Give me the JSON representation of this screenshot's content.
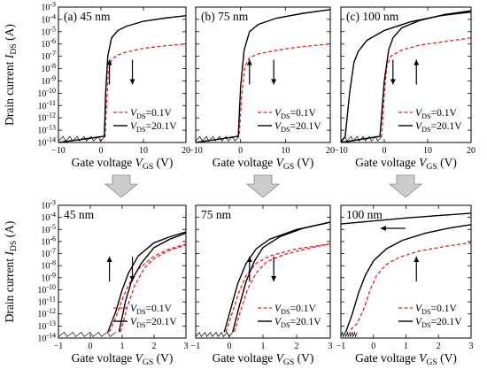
{
  "figure": {
    "ylabel": "Drain current I_DS (A)",
    "xlabel": "Gate voltage V_GS (V)",
    "legend_dashed": "V_DS=0.1V",
    "legend_solid": "V_DS=20.1V",
    "colors": {
      "dashed": "#ee1c24",
      "solid": "#000000",
      "arrow_fill": "#cccccc"
    }
  },
  "chart_data": [
    {
      "type": "line",
      "label": "(a) 45 nm",
      "xlim": [
        -10,
        20
      ],
      "ylim_log10": [
        -14,
        -3
      ],
      "xticks": [
        -10,
        0,
        10,
        20
      ],
      "ytick_labels": [
        "10^-3",
        "10^-4",
        "10^-5",
        "10^-6",
        "10^-7",
        "10^-8",
        "10^-9",
        "10^-10",
        "10^-11",
        "10^-12",
        "10^-13",
        "10^-14"
      ],
      "hysteresis_arrows": [
        "up",
        "down"
      ],
      "series": [
        {
          "name": "V_DS=0.1V",
          "style": "dashed",
          "x": [
            -10,
            1.0,
            1.3,
            1.8,
            2.6,
            4,
            6,
            10,
            15,
            20
          ],
          "log10_y": [
            -14,
            -13.5,
            -11,
            -8,
            -7.2,
            -6.9,
            -6.65,
            -6.35,
            -6.15,
            -6.0
          ]
        },
        {
          "name": "V_DS=20.1V",
          "style": "solid",
          "x": [
            -10,
            0.8,
            1.1,
            1.6,
            2.5,
            4,
            6,
            10,
            15,
            20
          ],
          "log10_y": [
            -14,
            -13.5,
            -10,
            -7,
            -5.5,
            -4.9,
            -4.55,
            -4.15,
            -3.9,
            -3.7
          ]
        }
      ]
    },
    {
      "type": "line",
      "label": "(b) 75 nm",
      "xlim": [
        -10,
        20
      ],
      "ylim_log10": [
        -14,
        -3
      ],
      "xticks": [
        -10,
        0,
        10,
        20
      ],
      "hysteresis_arrows": [
        "up",
        "down"
      ],
      "series": [
        {
          "name": "V_DS=0.1V",
          "style": "dashed",
          "x": [
            -10,
            -0.3,
            0.3,
            1,
            2,
            4,
            8,
            14,
            20
          ],
          "log10_y": [
            -14,
            -13.5,
            -10,
            -7.8,
            -7.1,
            -6.8,
            -6.5,
            -6.2,
            -6.0
          ]
        },
        {
          "name": "V_DS=20.1V",
          "style": "solid",
          "x": [
            -10,
            -0.5,
            0,
            0.8,
            2,
            4,
            8,
            14,
            20
          ],
          "log10_y": [
            -14,
            -13.5,
            -9.5,
            -6.5,
            -5.0,
            -4.4,
            -3.9,
            -3.5,
            -3.2
          ]
        }
      ]
    },
    {
      "type": "line",
      "label": "(c) 100 nm",
      "xlim": [
        -10,
        20
      ],
      "ylim_log10": [
        -14,
        -3
      ],
      "xticks": [
        -10,
        0,
        10,
        20
      ],
      "hysteresis_arrows": [
        "down",
        "up"
      ],
      "series": [
        {
          "name": "V_DS=0.1V",
          "style": "dashed",
          "x": [
            -10,
            -0.6,
            0,
            0.6,
            1.5,
            4,
            8,
            14,
            20
          ],
          "log10_y": [
            -14,
            -13.5,
            -10,
            -7.8,
            -7.0,
            -6.5,
            -6.1,
            -5.8,
            -5.5
          ]
        },
        {
          "name": "V_DS=20.1V",
          "style": "solid",
          "x": [
            -10,
            -1,
            0,
            1,
            2,
            4,
            8,
            14,
            20
          ],
          "log10_y": [
            -14,
            -13.5,
            -9,
            -6.5,
            -5.5,
            -4.7,
            -4.1,
            -3.6,
            -3.3
          ]
        },
        {
          "name": "V_DS=20.1V reverse",
          "style": "solid",
          "x": [
            -10,
            -9,
            -8,
            -7,
            -6,
            -4,
            0,
            6,
            13,
            20
          ],
          "log10_y": [
            -14,
            -13.5,
            -10,
            -7.5,
            -6.6,
            -5.7,
            -4.9,
            -4.2,
            -3.7,
            -3.4
          ]
        }
      ]
    },
    {
      "type": "line",
      "label": "45 nm",
      "xlim": [
        -1,
        3
      ],
      "ylim_log10": [
        -14,
        -3
      ],
      "xticks": [
        -1,
        0,
        1,
        2,
        3
      ],
      "ytick_labels": [
        "10^-3",
        "10^-4",
        "10^-5",
        "10^-6",
        "10^-7",
        "10^-8",
        "10^-9",
        "10^-10",
        "10^-11",
        "10^-12",
        "10^-13",
        "10^-14"
      ],
      "hysteresis_arrows": [
        "up",
        "down"
      ],
      "series": [
        {
          "name": "V_DS=0.1V",
          "style": "dashed",
          "x": [
            0.6,
            0.8,
            1.0,
            1.2,
            1.5,
            2.0,
            2.5,
            3.0
          ],
          "log10_y": [
            -13.5,
            -12.3,
            -10.8,
            -9.6,
            -8.3,
            -7.2,
            -6.6,
            -6.2
          ]
        },
        {
          "name": "V_DS=20.1V",
          "style": "solid",
          "x": [
            0.55,
            0.8,
            1.0,
            1.2,
            1.5,
            2.0,
            2.5,
            3.0
          ],
          "log10_y": [
            -13.5,
            -11.8,
            -10.0,
            -8.6,
            -7.2,
            -6.1,
            -5.6,
            -5.2
          ]
        },
        {
          "name": "V_DS=0.1V reverse",
          "style": "dashed",
          "x": [
            0.95,
            1.15,
            1.4,
            1.7,
            2.0,
            2.5,
            3.0
          ],
          "log10_y": [
            -13.5,
            -11.5,
            -9.6,
            -8.2,
            -7.4,
            -6.7,
            -6.3
          ]
        },
        {
          "name": "V_DS=20.1V reverse",
          "style": "solid",
          "x": [
            0.9,
            1.1,
            1.3,
            1.6,
            2.0,
            2.5,
            3.0
          ],
          "log10_y": [
            -13.5,
            -11.0,
            -9.2,
            -7.8,
            -6.5,
            -5.8,
            -5.3
          ]
        }
      ]
    },
    {
      "type": "line",
      "label": "75 nm",
      "xlim": [
        -1,
        3
      ],
      "ylim_log10": [
        -14,
        -3
      ],
      "xticks": [
        -1,
        0,
        1,
        2,
        3
      ],
      "hysteresis_arrows": [
        "up",
        "down"
      ],
      "series": [
        {
          "name": "V_DS=0.1V",
          "style": "dashed",
          "x": [
            -0.1,
            0.1,
            0.3,
            0.5,
            0.8,
            1.2,
            2.0,
            3.0
          ],
          "log10_y": [
            -13.5,
            -11.8,
            -10.1,
            -8.8,
            -7.8,
            -7.2,
            -6.6,
            -6.2
          ]
        },
        {
          "name": "V_DS=20.1V",
          "style": "solid",
          "x": [
            -0.15,
            0.05,
            0.25,
            0.5,
            0.8,
            1.2,
            2.0,
            3.0
          ],
          "log10_y": [
            -13.5,
            -11.5,
            -9.5,
            -7.8,
            -6.6,
            -5.8,
            -5.0,
            -4.4
          ]
        },
        {
          "name": "V_DS=0.1V reverse",
          "style": "dashed",
          "x": [
            0.15,
            0.35,
            0.55,
            0.8,
            1.1,
            1.6,
            2.3,
            3.0
          ],
          "log10_y": [
            -13.5,
            -11.6,
            -9.9,
            -8.6,
            -7.7,
            -7.1,
            -6.6,
            -6.2
          ]
        },
        {
          "name": "V_DS=20.1V reverse",
          "style": "solid",
          "x": [
            0.1,
            0.3,
            0.5,
            0.75,
            1.0,
            1.5,
            2.2,
            3.0
          ],
          "log10_y": [
            -13.5,
            -11.3,
            -9.3,
            -7.6,
            -6.5,
            -5.6,
            -4.9,
            -4.4
          ]
        }
      ]
    },
    {
      "type": "line",
      "label": "100 nm",
      "xlim": [
        -1,
        3
      ],
      "ylim_log10": [
        -14,
        -3
      ],
      "xticks": [
        -1,
        0,
        1,
        2,
        3
      ],
      "hysteresis_arrows": [
        "left",
        "up"
      ],
      "series": [
        {
          "name": "V_DS=0.1V",
          "style": "dashed",
          "x": [
            -0.7,
            -0.5,
            -0.3,
            -0.1,
            0.1,
            0.4,
            0.8,
            1.4,
            2.2,
            3.0
          ],
          "log10_y": [
            -13.3,
            -12.8,
            -11.6,
            -10.0,
            -8.8,
            -7.9,
            -7.3,
            -6.8,
            -6.4,
            -6.1
          ]
        },
        {
          "name": "V_DS=20.1V",
          "style": "solid",
          "x": [
            -0.85,
            -0.65,
            -0.45,
            -0.25,
            0.0,
            0.4,
            0.9,
            1.6,
            2.3,
            3.0
          ],
          "log10_y": [
            -13.5,
            -12.0,
            -10.2,
            -8.8,
            -7.6,
            -6.6,
            -5.9,
            -5.3,
            -4.9,
            -4.6
          ]
        },
        {
          "name": "V_DS=20.1V reverse",
          "style": "solid",
          "x": [
            -1.0,
            0,
            1,
            2,
            3
          ],
          "log10_y": [
            -4.55,
            -4.3,
            -4.05,
            -3.85,
            -3.65
          ]
        }
      ]
    }
  ]
}
